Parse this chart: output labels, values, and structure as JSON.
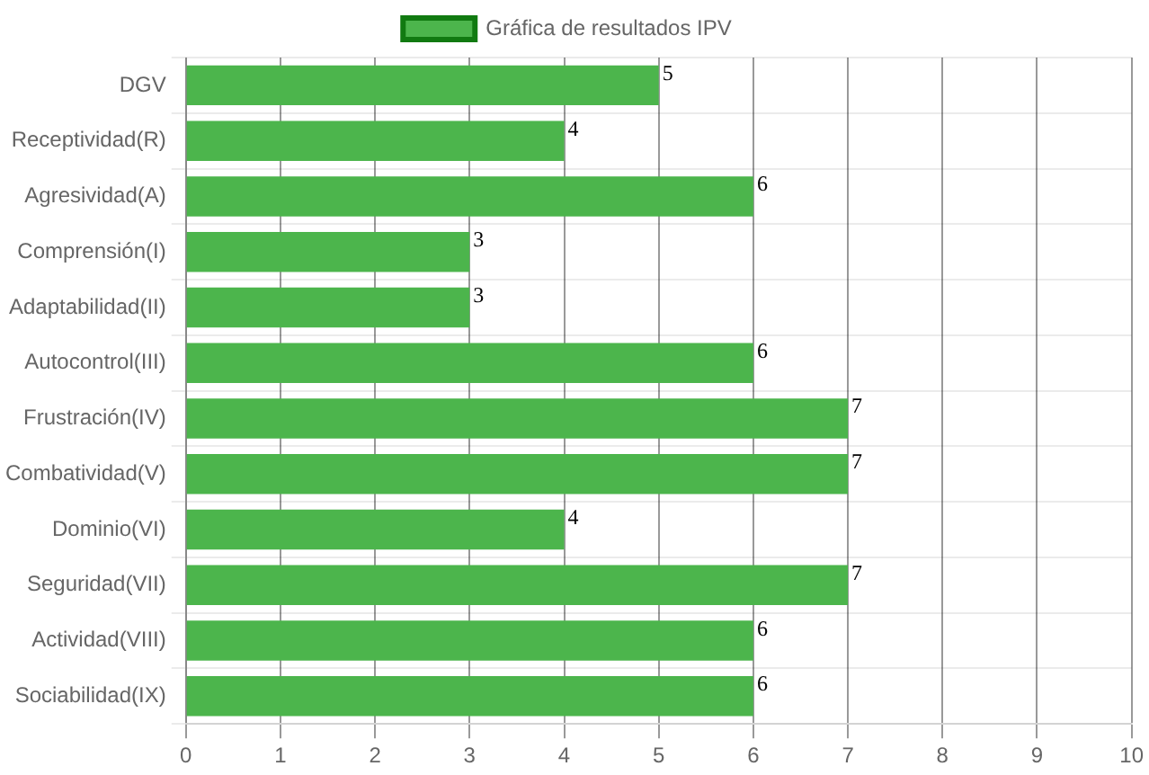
{
  "chart_data": {
    "type": "bar",
    "orientation": "horizontal",
    "categories": [
      "DGV",
      "Receptividad(R)",
      "Agresividad(A)",
      "Comprensión(I)",
      "Adaptabilidad(II)",
      "Autocontrol(III)",
      "Frustración(IV)",
      "Combatividad(V)",
      "Dominio(VI)",
      "Seguridad(VII)",
      "Actividad(VIII)",
      "Sociabilidad(IX)"
    ],
    "series": [
      {
        "name": "Gráfica de resultados IPV",
        "color": "#4cb54c",
        "values": [
          5,
          4,
          6,
          3,
          3,
          6,
          7,
          7,
          4,
          7,
          6,
          6
        ]
      }
    ],
    "xlim": [
      0,
      10
    ],
    "xticks": [
      0,
      1,
      2,
      3,
      4,
      5,
      6,
      7,
      8,
      9,
      10
    ],
    "grid": true,
    "legend": "top",
    "data_labels": true
  }
}
